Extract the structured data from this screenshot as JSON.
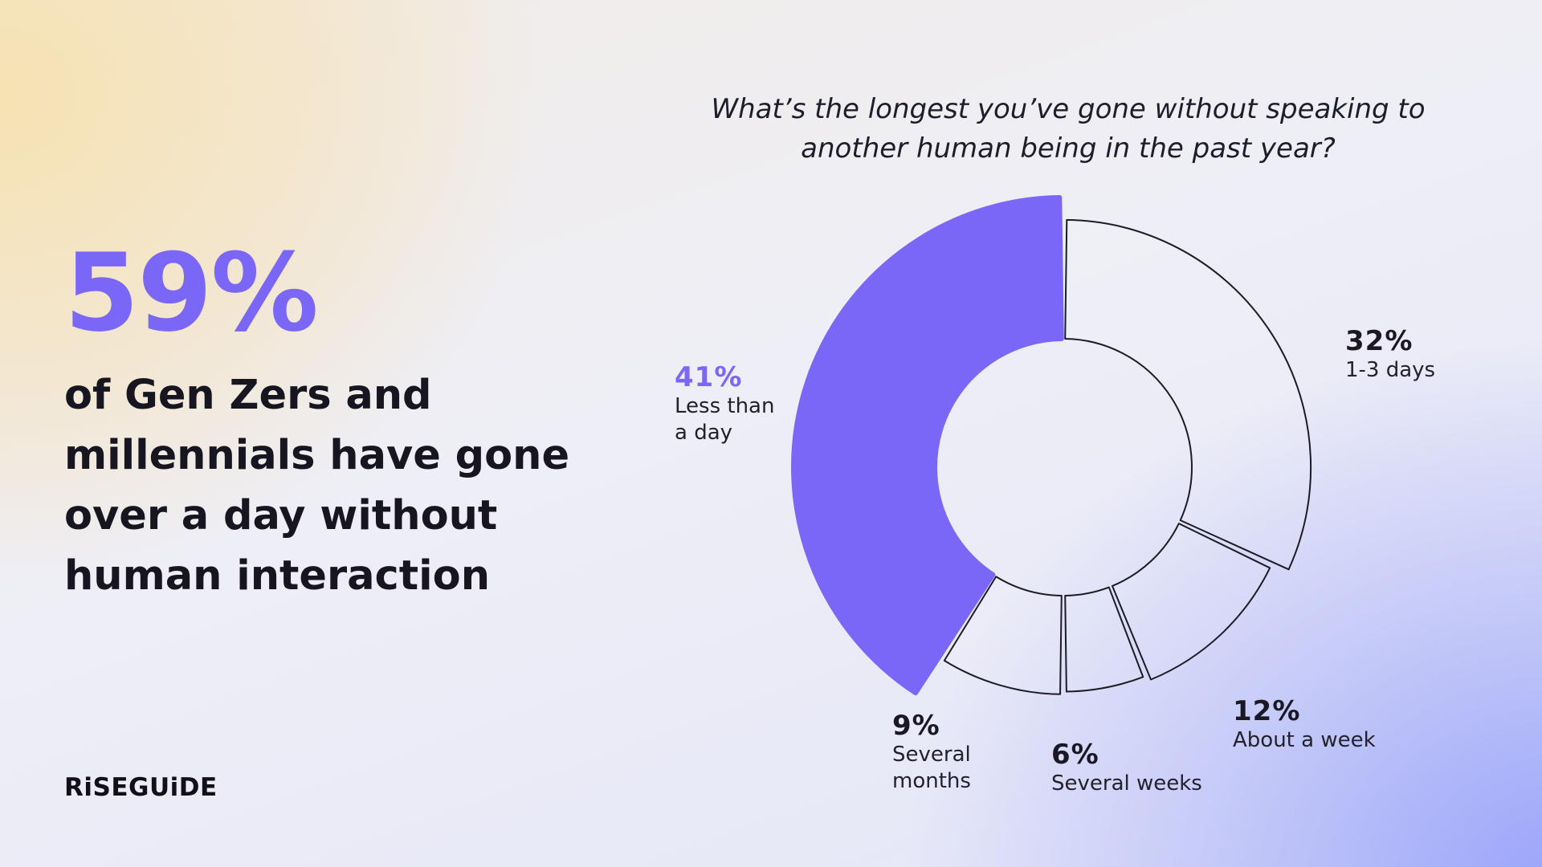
{
  "headline": {
    "stat": "59%",
    "line1": "of Gen Zers and",
    "line2": "millennials have gone",
    "line3": "over a day without",
    "line4": "human interaction"
  },
  "brand": {
    "logo_text": "RiSEGUiDE"
  },
  "colors": {
    "accent": "#7a67f8",
    "outline": "#1c1b26"
  },
  "chart_data": {
    "type": "pie",
    "title_line1": "What’s the longest you’ve gone without speaking to",
    "title_line2": "another human being in the past year?",
    "slices": [
      {
        "label_line1": "Less than",
        "label_line2": "a day",
        "value": 41,
        "value_label": "41%",
        "highlight": true
      },
      {
        "label_line1": "1-3 days",
        "label_line2": "",
        "value": 32,
        "value_label": "32%",
        "highlight": false
      },
      {
        "label_line1": "About a week",
        "label_line2": "",
        "value": 12,
        "value_label": "12%",
        "highlight": false
      },
      {
        "label_line1": "Several weeks",
        "label_line2": "",
        "value": 6,
        "value_label": "6%",
        "highlight": false
      },
      {
        "label_line1": "Several",
        "label_line2": "months",
        "value": 9,
        "value_label": "9%",
        "highlight": false
      }
    ]
  }
}
